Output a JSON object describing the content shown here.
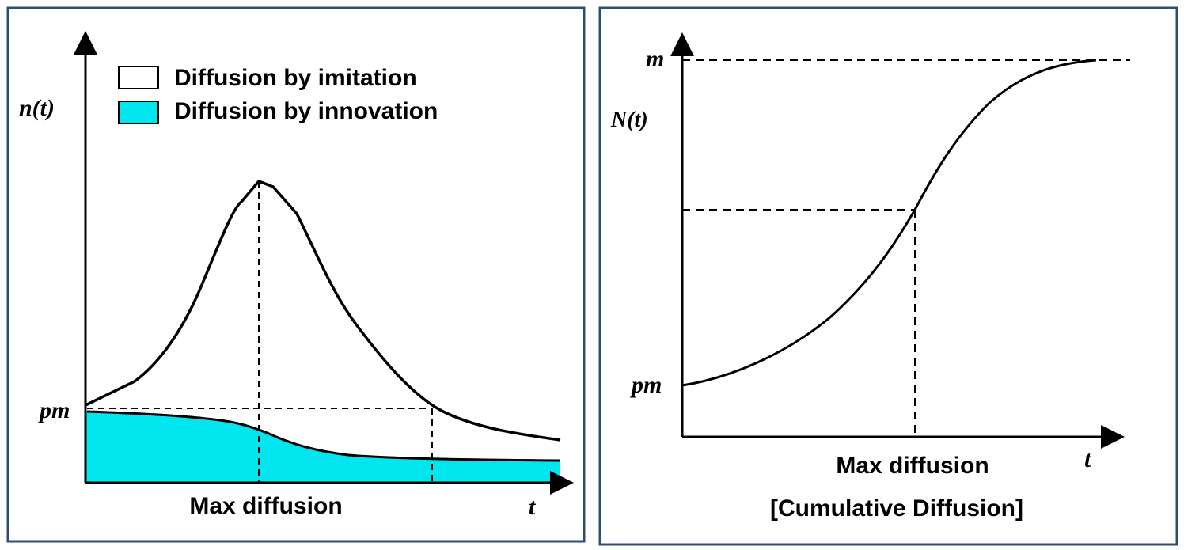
{
  "left_panel": {
    "y_axis_label": "n(t)",
    "x_axis_label": "t",
    "y_tick_label": "pm",
    "x_caption": "Max diffusion",
    "legend": [
      {
        "label": "Diffusion by imitation",
        "color": "#ffffff"
      },
      {
        "label": "Diffusion by innovation",
        "color": "#00e5ee"
      }
    ]
  },
  "right_panel": {
    "y_axis_label": "N(t)",
    "x_axis_label": "t",
    "y_top_label": "m",
    "y_bottom_label": "pm",
    "x_caption": "Max diffusion",
    "caption": "[Cumulative Diffusion]"
  },
  "colors": {
    "frame": "#2f4f6f",
    "innovation_fill": "#00e5ee",
    "line": "#000000"
  }
}
